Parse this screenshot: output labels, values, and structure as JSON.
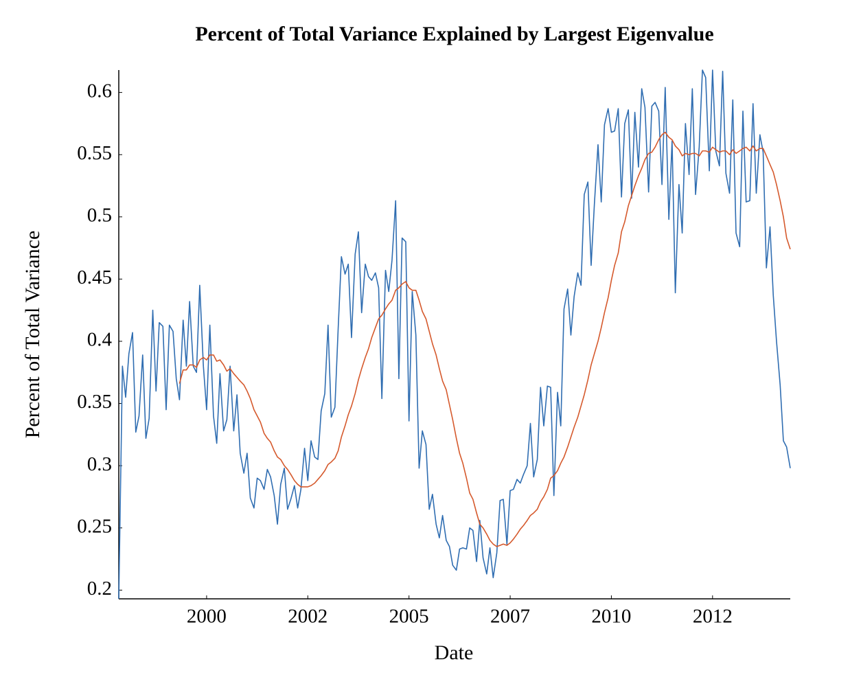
{
  "chart_data": {
    "type": "line",
    "title": "Percent of Total Variance Explained by Largest Eigenvalue",
    "x_label": "Date",
    "y_label": "Percent of Total Variance",
    "xlim": [
      1997.83,
      2014.42
    ],
    "ylim": [
      0.193,
      0.618
    ],
    "xticks": [
      {
        "value": 2000,
        "label": "2000"
      },
      {
        "value": 2002.5,
        "label": "2002"
      },
      {
        "value": 2005,
        "label": "2005"
      },
      {
        "value": 2007.5,
        "label": "2007"
      },
      {
        "value": 2010,
        "label": "2010"
      },
      {
        "value": 2012.5,
        "label": "2012"
      }
    ],
    "yticks": [
      0.2,
      0.25,
      0.3,
      0.35,
      0.4,
      0.45,
      0.5,
      0.55,
      0.6
    ],
    "grid": false,
    "x": [
      1997.83,
      1997.92,
      1998.0,
      1998.08,
      1998.17,
      1998.25,
      1998.33,
      1998.42,
      1998.5,
      1998.58,
      1998.67,
      1998.75,
      1998.83,
      1998.92,
      1999.0,
      1999.08,
      1999.17,
      1999.25,
      1999.33,
      1999.42,
      1999.5,
      1999.58,
      1999.67,
      1999.75,
      1999.83,
      1999.92,
      2000.0,
      2000.08,
      2000.17,
      2000.25,
      2000.33,
      2000.42,
      2000.5,
      2000.58,
      2000.67,
      2000.75,
      2000.83,
      2000.92,
      2001.0,
      2001.08,
      2001.17,
      2001.25,
      2001.33,
      2001.42,
      2001.5,
      2001.58,
      2001.67,
      2001.75,
      2001.83,
      2001.92,
      2002.0,
      2002.08,
      2002.17,
      2002.25,
      2002.33,
      2002.42,
      2002.5,
      2002.58,
      2002.67,
      2002.75,
      2002.83,
      2002.92,
      2003.0,
      2003.08,
      2003.17,
      2003.25,
      2003.33,
      2003.42,
      2003.5,
      2003.58,
      2003.67,
      2003.75,
      2003.83,
      2003.92,
      2004.0,
      2004.08,
      2004.17,
      2004.25,
      2004.33,
      2004.42,
      2004.5,
      2004.58,
      2004.67,
      2004.75,
      2004.83,
      2004.92,
      2005.0,
      2005.08,
      2005.17,
      2005.25,
      2005.33,
      2005.42,
      2005.5,
      2005.58,
      2005.67,
      2005.75,
      2005.83,
      2005.92,
      2006.0,
      2006.08,
      2006.17,
      2006.25,
      2006.33,
      2006.42,
      2006.5,
      2006.58,
      2006.67,
      2006.75,
      2006.83,
      2006.92,
      2007.0,
      2007.08,
      2007.17,
      2007.25,
      2007.33,
      2007.42,
      2007.5,
      2007.58,
      2007.67,
      2007.75,
      2007.83,
      2007.92,
      2008.0,
      2008.08,
      2008.17,
      2008.25,
      2008.33,
      2008.42,
      2008.5,
      2008.58,
      2008.67,
      2008.75,
      2008.83,
      2008.92,
      2009.0,
      2009.08,
      2009.17,
      2009.25,
      2009.33,
      2009.42,
      2009.5,
      2009.58,
      2009.67,
      2009.75,
      2009.83,
      2009.92,
      2010.0,
      2010.08,
      2010.17,
      2010.25,
      2010.33,
      2010.42,
      2010.5,
      2010.58,
      2010.67,
      2010.75,
      2010.83,
      2010.92,
      2011.0,
      2011.08,
      2011.17,
      2011.25,
      2011.33,
      2011.42,
      2011.5,
      2011.58,
      2011.67,
      2011.75,
      2011.83,
      2011.92,
      2012.0,
      2012.08,
      2012.17,
      2012.25,
      2012.33,
      2012.42,
      2012.5,
      2012.58,
      2012.67,
      2012.75,
      2012.83,
      2012.92,
      2013.0,
      2013.08,
      2013.17,
      2013.25,
      2013.33,
      2013.42,
      2013.5,
      2013.58,
      2013.67,
      2013.75,
      2013.83,
      2013.92,
      2014.0,
      2014.08,
      2014.17,
      2014.25,
      2014.33,
      2014.42
    ],
    "series": [
      {
        "color": "#2f6db1",
        "values": [
          0.193,
          0.38,
          0.355,
          0.39,
          0.407,
          0.327,
          0.34,
          0.389,
          0.322,
          0.338,
          0.425,
          0.36,
          0.415,
          0.412,
          0.345,
          0.413,
          0.408,
          0.37,
          0.353,
          0.417,
          0.38,
          0.432,
          0.38,
          0.375,
          0.445,
          0.38,
          0.345,
          0.413,
          0.34,
          0.318,
          0.374,
          0.328,
          0.337,
          0.38,
          0.328,
          0.357,
          0.31,
          0.294,
          0.31,
          0.274,
          0.266,
          0.29,
          0.288,
          0.281,
          0.297,
          0.291,
          0.276,
          0.253,
          0.285,
          0.298,
          0.265,
          0.273,
          0.284,
          0.266,
          0.281,
          0.314,
          0.288,
          0.32,
          0.307,
          0.305,
          0.344,
          0.358,
          0.413,
          0.339,
          0.347,
          0.41,
          0.468,
          0.454,
          0.462,
          0.403,
          0.47,
          0.488,
          0.423,
          0.462,
          0.452,
          0.449,
          0.455,
          0.443,
          0.354,
          0.457,
          0.44,
          0.465,
          0.513,
          0.37,
          0.483,
          0.48,
          0.336,
          0.44,
          0.405,
          0.298,
          0.328,
          0.317,
          0.265,
          0.277,
          0.253,
          0.242,
          0.26,
          0.24,
          0.235,
          0.22,
          0.216,
          0.233,
          0.234,
          0.233,
          0.25,
          0.248,
          0.223,
          0.256,
          0.226,
          0.213,
          0.234,
          0.21,
          0.23,
          0.272,
          0.273,
          0.237,
          0.28,
          0.281,
          0.289,
          0.286,
          0.293,
          0.3,
          0.334,
          0.291,
          0.305,
          0.363,
          0.332,
          0.364,
          0.363,
          0.276,
          0.359,
          0.332,
          0.426,
          0.442,
          0.405,
          0.436,
          0.455,
          0.445,
          0.518,
          0.528,
          0.461,
          0.51,
          0.558,
          0.512,
          0.574,
          0.587,
          0.568,
          0.569,
          0.587,
          0.516,
          0.575,
          0.586,
          0.515,
          0.584,
          0.54,
          0.603,
          0.588,
          0.52,
          0.589,
          0.592,
          0.585,
          0.526,
          0.604,
          0.498,
          0.561,
          0.439,
          0.526,
          0.487,
          0.575,
          0.534,
          0.603,
          0.518,
          0.556,
          0.618,
          0.612,
          0.537,
          0.618,
          0.553,
          0.541,
          0.617,
          0.535,
          0.519,
          0.594,
          0.487,
          0.476,
          0.585,
          0.512,
          0.513,
          0.591,
          0.519,
          0.566,
          0.552,
          0.459,
          0.492,
          0.437,
          0.4,
          0.365,
          0.32,
          0.315,
          0.298
        ]
      },
      {
        "color": "#d5592c",
        "values": [
          null,
          null,
          null,
          null,
          null,
          null,
          null,
          null,
          null,
          null,
          null,
          null,
          null,
          null,
          null,
          null,
          null,
          null,
          0.366,
          0.377,
          0.377,
          0.381,
          0.381,
          0.379,
          0.385,
          0.387,
          0.385,
          0.389,
          0.389,
          0.384,
          0.385,
          0.381,
          0.376,
          0.378,
          0.374,
          0.371,
          0.368,
          0.365,
          0.36,
          0.354,
          0.345,
          0.34,
          0.335,
          0.326,
          0.322,
          0.319,
          0.312,
          0.307,
          0.305,
          0.3,
          0.297,
          0.293,
          0.288,
          0.285,
          0.283,
          0.283,
          0.283,
          0.284,
          0.286,
          0.289,
          0.292,
          0.296,
          0.301,
          0.303,
          0.306,
          0.312,
          0.323,
          0.332,
          0.341,
          0.348,
          0.358,
          0.369,
          0.378,
          0.387,
          0.394,
          0.403,
          0.411,
          0.418,
          0.421,
          0.426,
          0.43,
          0.433,
          0.441,
          0.443,
          0.446,
          0.448,
          0.443,
          0.441,
          0.441,
          0.433,
          0.424,
          0.418,
          0.408,
          0.398,
          0.389,
          0.378,
          0.368,
          0.361,
          0.349,
          0.337,
          0.322,
          0.31,
          0.302,
          0.29,
          0.278,
          0.273,
          0.262,
          0.253,
          0.25,
          0.245,
          0.24,
          0.237,
          0.235,
          0.236,
          0.237,
          0.236,
          0.238,
          0.241,
          0.245,
          0.249,
          0.252,
          0.256,
          0.26,
          0.262,
          0.265,
          0.271,
          0.275,
          0.281,
          0.29,
          0.292,
          0.296,
          0.302,
          0.307,
          0.315,
          0.323,
          0.331,
          0.339,
          0.348,
          0.357,
          0.369,
          0.381,
          0.39,
          0.4,
          0.411,
          0.423,
          0.435,
          0.449,
          0.461,
          0.471,
          0.488,
          0.496,
          0.509,
          0.517,
          0.525,
          0.533,
          0.539,
          0.546,
          0.551,
          0.552,
          0.556,
          0.562,
          0.566,
          0.568,
          0.564,
          0.562,
          0.557,
          0.554,
          0.549,
          0.551,
          0.55,
          0.551,
          0.551,
          0.549,
          0.553,
          0.553,
          0.552,
          0.556,
          0.554,
          0.552,
          0.553,
          0.553,
          0.55,
          0.554,
          0.551,
          0.553,
          0.555,
          0.556,
          0.553,
          0.557,
          0.553,
          0.555,
          0.555,
          0.549,
          0.542,
          0.536,
          0.526,
          0.513,
          0.5,
          0.483,
          0.474
        ]
      }
    ]
  }
}
